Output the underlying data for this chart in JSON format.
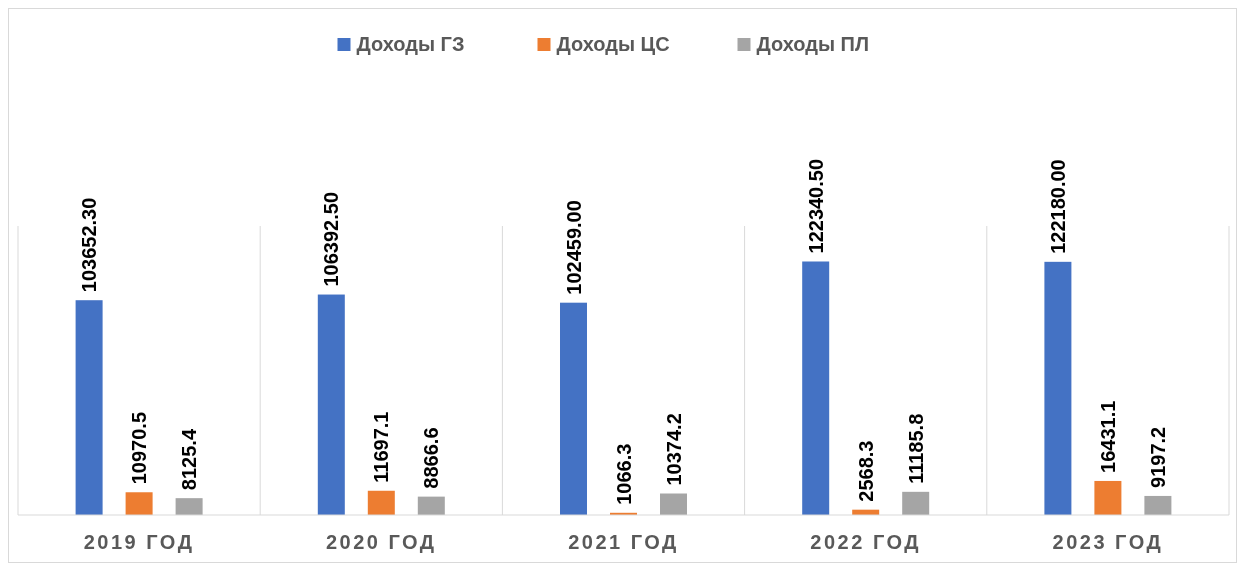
{
  "chart_data": {
    "type": "bar",
    "categories": [
      "2019 ГОД",
      "2020 ГОД",
      "2021 ГОД",
      "2022 ГОД",
      "2023 ГОД"
    ],
    "series": [
      {
        "name": "Доходы ГЗ",
        "color": "#4472c4",
        "values": [
          103652.3,
          106392.5,
          102459,
          122340.5,
          122180
        ],
        "value_labels": [
          "103652.30",
          "106392.50",
          "102459.00",
          "122340.50",
          "122180.00"
        ]
      },
      {
        "name": "Доходы ЦС",
        "color": "#ed7d31",
        "values": [
          10970.5,
          11697.1,
          1066.3,
          2568.3,
          16431.1
        ],
        "value_labels": [
          "10970.5",
          "11697.1",
          "1066.3",
          "2568.3",
          "16431.1"
        ]
      },
      {
        "name": "Доходы ПЛ",
        "color": "#a5a5a5",
        "values": [
          8125.4,
          8866.6,
          10374.2,
          11185.8,
          9197.2
        ],
        "value_labels": [
          "8125.4",
          "8866.6",
          "10374.2",
          "11185.8",
          "9197.2"
        ]
      }
    ],
    "grid": "x",
    "legend": "top"
  }
}
